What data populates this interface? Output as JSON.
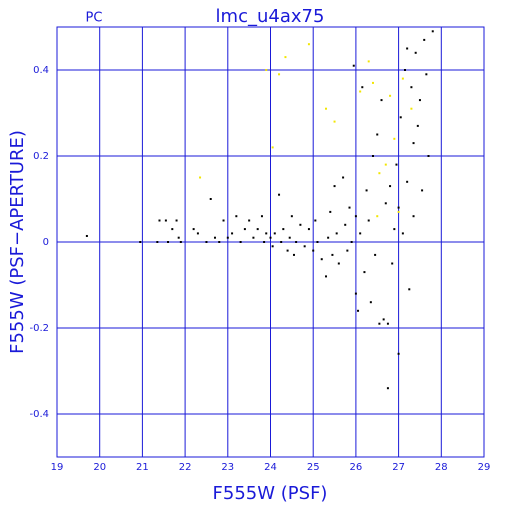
{
  "chart_data": {
    "type": "scatter",
    "title": "lmc_u4ax75",
    "subtitle": "PC",
    "x_label": "F555W (PSF)",
    "y_label": "F555W (PSF−APERTURE)",
    "xlim": [
      19,
      29
    ],
    "ylim": [
      -0.5,
      0.5
    ],
    "xticks": [
      19,
      20,
      21,
      22,
      23,
      24,
      25,
      26,
      27,
      28,
      29
    ],
    "yticks": [
      -0.4,
      -0.2,
      0,
      0.2,
      0.4
    ],
    "grid": true,
    "grid_color": "#1a1ad8",
    "series": [
      {
        "color": "#000000",
        "x": [
          19.7,
          20.95,
          21.35,
          21.4,
          21.55,
          21.6,
          21.7,
          21.8,
          21.85,
          21.9,
          22.2,
          22.3,
          22.5,
          22.6,
          22.7,
          22.8,
          22.9,
          23.0,
          23.1,
          23.2,
          23.3,
          23.4,
          23.5,
          23.6,
          23.7,
          23.8,
          23.85,
          23.9,
          24.0,
          24.05,
          24.1,
          24.2,
          24.25,
          24.3,
          24.4,
          24.45,
          24.5,
          24.55,
          24.6,
          24.7,
          24.8,
          24.9,
          25.0,
          25.05,
          25.1,
          25.2,
          25.3,
          25.35,
          25.4,
          25.45,
          25.5,
          25.55,
          25.6,
          25.7,
          25.75,
          25.8,
          25.85,
          25.9,
          25.95,
          26.0,
          26.0,
          26.05,
          26.1,
          26.15,
          26.2,
          26.25,
          26.3,
          26.35,
          26.4,
          26.45,
          26.5,
          26.55,
          26.6,
          26.65,
          26.7,
          26.75,
          26.8,
          26.85,
          26.9,
          26.95,
          27.0,
          27.0,
          27.05,
          27.1,
          27.15,
          27.2,
          27.25,
          27.3,
          27.35,
          27.4,
          27.45,
          27.5,
          27.55,
          27.6,
          27.65,
          27.7,
          27.8,
          26.75,
          27.2,
          27.35
        ],
        "y": [
          0.014,
          0.0,
          0.0,
          0.05,
          0.05,
          0.0,
          0.03,
          0.05,
          0.01,
          0.0,
          0.03,
          0.02,
          0.0,
          0.1,
          0.01,
          0.0,
          0.05,
          0.01,
          0.02,
          0.06,
          0.0,
          0.03,
          0.05,
          0.01,
          0.03,
          0.06,
          0.0,
          0.02,
          0.01,
          -0.01,
          0.02,
          0.11,
          0.0,
          0.03,
          -0.02,
          0.01,
          0.06,
          -0.03,
          0.0,
          0.04,
          -0.01,
          0.03,
          -0.02,
          0.05,
          0.0,
          -0.04,
          -0.08,
          0.01,
          0.07,
          -0.03,
          0.13,
          0.02,
          -0.05,
          0.15,
          0.04,
          -0.02,
          0.08,
          0.0,
          0.41,
          -0.12,
          0.06,
          -0.16,
          0.02,
          0.36,
          -0.07,
          0.12,
          0.05,
          -0.14,
          0.2,
          -0.03,
          0.25,
          -0.19,
          0.33,
          -0.18,
          0.09,
          -0.19,
          0.13,
          -0.05,
          0.03,
          0.18,
          -0.26,
          0.08,
          0.29,
          0.02,
          0.4,
          0.14,
          -0.11,
          0.36,
          0.06,
          0.44,
          0.27,
          0.33,
          0.12,
          0.47,
          0.39,
          0.2,
          0.49,
          -0.34,
          0.45,
          0.23
        ]
      },
      {
        "color": "#f2e600",
        "x": [
          22.35,
          23.9,
          24.05,
          24.2,
          24.35,
          24.9,
          25.3,
          25.5,
          26.1,
          26.3,
          26.4,
          26.55,
          26.7,
          26.8,
          26.9,
          27.0,
          27.1,
          27.3,
          26.5
        ],
        "y": [
          0.15,
          0.4,
          0.22,
          0.39,
          0.43,
          0.46,
          0.31,
          0.28,
          0.35,
          0.42,
          0.37,
          0.16,
          0.18,
          0.34,
          0.24,
          0.07,
          0.38,
          0.31,
          0.06
        ]
      }
    ]
  }
}
